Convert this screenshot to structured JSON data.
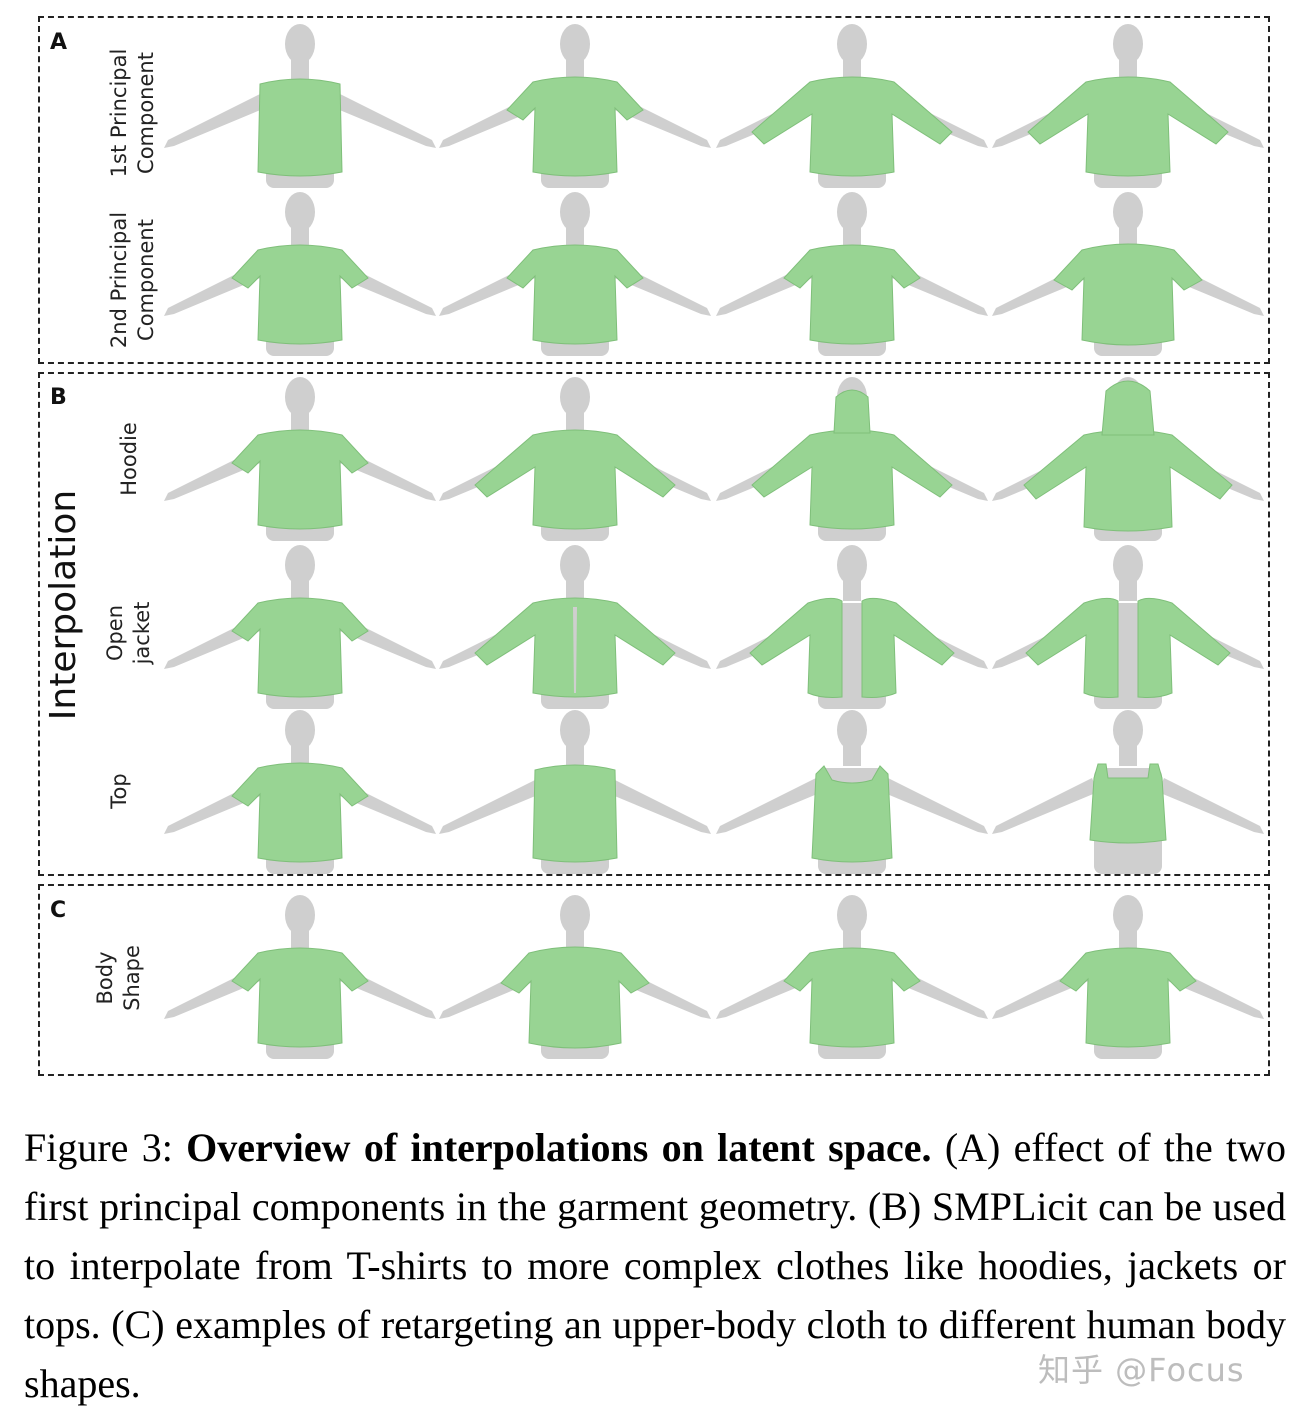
{
  "figure": {
    "panels": [
      {
        "letter": "A",
        "rows": [
          {
            "label_line1": "1st Principal",
            "label_line2": "Component",
            "garments": [
              "vest",
              "tshirt",
              "long-sleeve",
              "long-sleeve"
            ]
          },
          {
            "label_line1": "2nd Principal",
            "label_line2": "Component",
            "garments": [
              "tshirt",
              "tshirt",
              "tshirt",
              "tshirt-wide"
            ]
          }
        ]
      },
      {
        "letter": "B",
        "group_label": "Interpolation",
        "rows": [
          {
            "label_line1": "Hoodie",
            "label_line2": "",
            "garments": [
              "tshirt",
              "long-sleeve",
              "long-sleeve-hood",
              "hoodie"
            ]
          },
          {
            "label_line1": "Open",
            "label_line2": "jacket",
            "garments": [
              "tshirt",
              "long-sleeve-split",
              "open-jacket",
              "open-jacket"
            ]
          },
          {
            "label_line1": "Top",
            "label_line2": "",
            "garments": [
              "tshirt",
              "vest",
              "tank",
              "crop-top"
            ]
          }
        ]
      },
      {
        "letter": "C",
        "rows": [
          {
            "label_line1": "Body",
            "label_line2": "Shape",
            "garments": [
              "tshirt",
              "tshirt-wide",
              "tshirt",
              "tshirt"
            ]
          }
        ]
      }
    ],
    "colors": {
      "garment": "#98d493",
      "garment_edge": "#7fbf7a",
      "body": "#cfcfcf",
      "body_shade": "#b8b8b8",
      "border": "#222222"
    }
  },
  "caption": {
    "prefix": "Figure 3:",
    "bold": "Overview of interpolations on latent space.",
    "text": "(A) effect of the two first principal components in the garment geometry. (B) SMPLicit can be used to interpolate from T-shirts to more complex clothes like hoodies, jackets or tops. (C) examples of retargeting an upper-body cloth to different human body shapes."
  },
  "watermark": "知乎 @Focus"
}
